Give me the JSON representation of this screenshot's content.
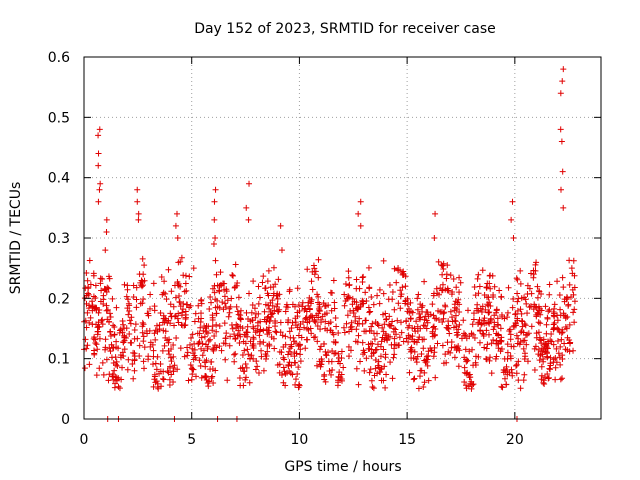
{
  "chart_data": {
    "type": "scatter",
    "title": "Day 152 of 2023, SRMTID for receiver case",
    "xlabel": "GPS time / hours",
    "ylabel": "SRMTID / TECUs",
    "xlim": [
      0,
      24
    ],
    "ylim": [
      0,
      0.6
    ],
    "x_ticks": [
      0,
      5,
      10,
      15,
      20
    ],
    "y_ticks": [
      0,
      0.1,
      0.2,
      0.3,
      0.4,
      0.5,
      0.6
    ],
    "y_tick_labels": [
      "0",
      "0.1",
      "0.2",
      "0.3",
      "0.4",
      "0.5",
      "0.6"
    ],
    "grid": true,
    "marker": "+",
    "colors": {
      "marker": "#e00000",
      "grid": "#a0a0a0",
      "axis": "#000000"
    },
    "series": [
      {
        "name": "SRMTID",
        "x_range": [
          0.0,
          22.8
        ],
        "typical_band": [
          0.07,
          0.25
        ],
        "zero_points_x": [
          1.1,
          1.6,
          4.2,
          6.2,
          7.1,
          20.1
        ],
        "spikes": [
          {
            "x": 0.7,
            "values": [
              0.48,
              0.47,
              0.44,
              0.42,
              0.39,
              0.38,
              0.36
            ]
          },
          {
            "x": 1.0,
            "values": [
              0.33,
              0.31,
              0.28
            ]
          },
          {
            "x": 2.5,
            "values": [
              0.38,
              0.36,
              0.34,
              0.33
            ]
          },
          {
            "x": 4.3,
            "values": [
              0.34,
              0.32,
              0.3
            ]
          },
          {
            "x": 6.1,
            "values": [
              0.38,
              0.36,
              0.33,
              0.3,
              0.29
            ]
          },
          {
            "x": 7.6,
            "values": [
              0.39,
              0.35,
              0.33
            ]
          },
          {
            "x": 9.2,
            "values": [
              0.32,
              0.28
            ]
          },
          {
            "x": 12.8,
            "values": [
              0.36,
              0.34,
              0.32
            ]
          },
          {
            "x": 16.3,
            "values": [
              0.34,
              0.3
            ]
          },
          {
            "x": 19.9,
            "values": [
              0.36,
              0.33,
              0.3
            ]
          },
          {
            "x": 22.2,
            "values": [
              0.58,
              0.56,
              0.54,
              0.48,
              0.46,
              0.41,
              0.38,
              0.35
            ]
          }
        ]
      }
    ]
  }
}
